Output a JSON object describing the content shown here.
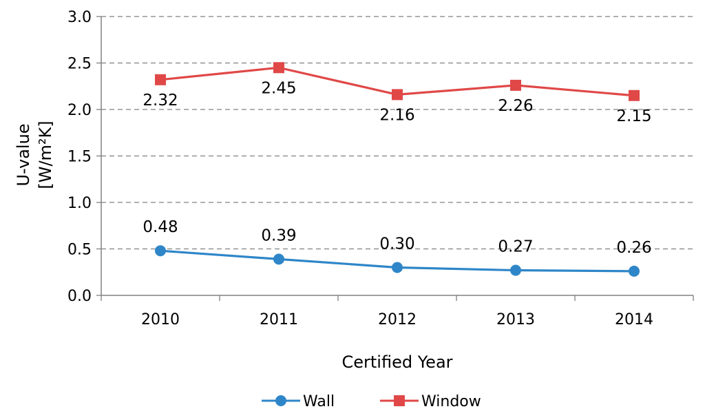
{
  "chart_data": {
    "type": "line",
    "categories": [
      "2010",
      "2011",
      "2012",
      "2013",
      "2014"
    ],
    "series": [
      {
        "name": "Wall",
        "values": [
          0.48,
          0.39,
          0.3,
          0.27,
          0.26
        ],
        "labels": [
          "0.48",
          "0.39",
          "0.30",
          "0.27",
          "0.26"
        ],
        "color": "#2E86C8",
        "marker": "circle",
        "label_position": "above"
      },
      {
        "name": "Window",
        "values": [
          2.32,
          2.45,
          2.16,
          2.26,
          2.15
        ],
        "labels": [
          "2.32",
          "2.45",
          "2.16",
          "2.26",
          "2.15"
        ],
        "color": "#E04848",
        "marker": "square",
        "label_position": "below"
      }
    ],
    "title": "",
    "xlabel": "Certified Year",
    "ylabel_line1": "U-value",
    "ylabel_line2": "[W/m²K]",
    "ylim": [
      0,
      3.0
    ],
    "yticks": [
      "0.0",
      "0.5",
      "1.0",
      "1.5",
      "2.0",
      "2.5",
      "3.0"
    ],
    "grid": "horizontal dashed",
    "legend_position": "bottom"
  }
}
